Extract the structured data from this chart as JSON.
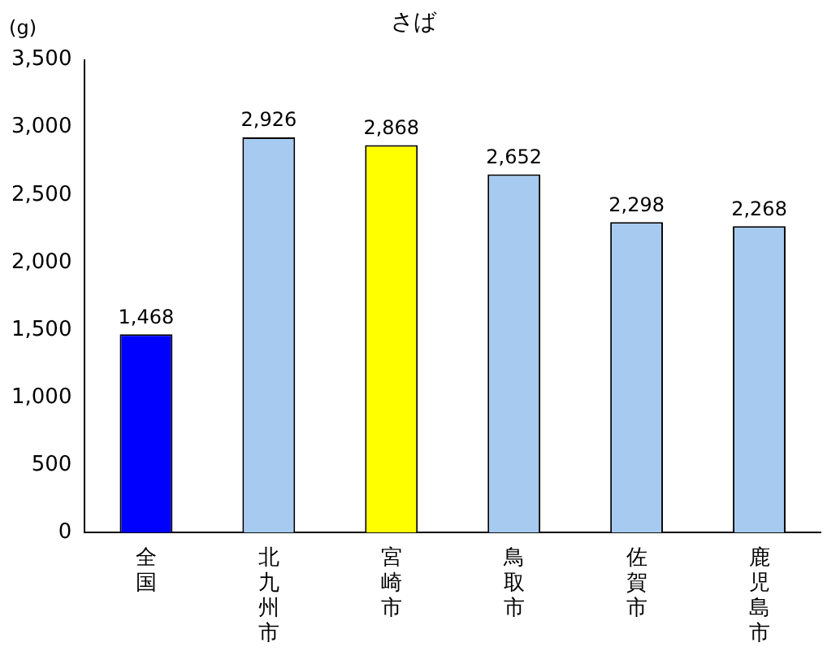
{
  "chart_data": {
    "type": "bar",
    "title": "さば",
    "ylabel": "(g)",
    "categories": [
      "全国",
      "北九州市",
      "宮崎市",
      "鳥取市",
      "佐賀市",
      "鹿児島市"
    ],
    "values": [
      1468,
      2926,
      2868,
      2652,
      2298,
      2268
    ],
    "colors": [
      "#0000ff",
      "#a6caf0",
      "#ffff00",
      "#a6caf0",
      "#a6caf0",
      "#a6caf0"
    ],
    "value_labels": [
      "1,468",
      "2,926",
      "2,868",
      "2,652",
      "2,298",
      "2,268"
    ],
    "ylim": [
      0,
      3500
    ],
    "yticks": [
      {
        "value": 0,
        "label": "0"
      },
      {
        "value": 500,
        "label": "500"
      },
      {
        "value": 1000,
        "label": "1,000"
      },
      {
        "value": 1500,
        "label": "1,500"
      },
      {
        "value": 2000,
        "label": "2,000"
      },
      {
        "value": 2500,
        "label": "2,500"
      },
      {
        "value": 3000,
        "label": "3,000"
      },
      {
        "value": 3500,
        "label": "3,500"
      }
    ],
    "grid": false,
    "legend": false
  }
}
